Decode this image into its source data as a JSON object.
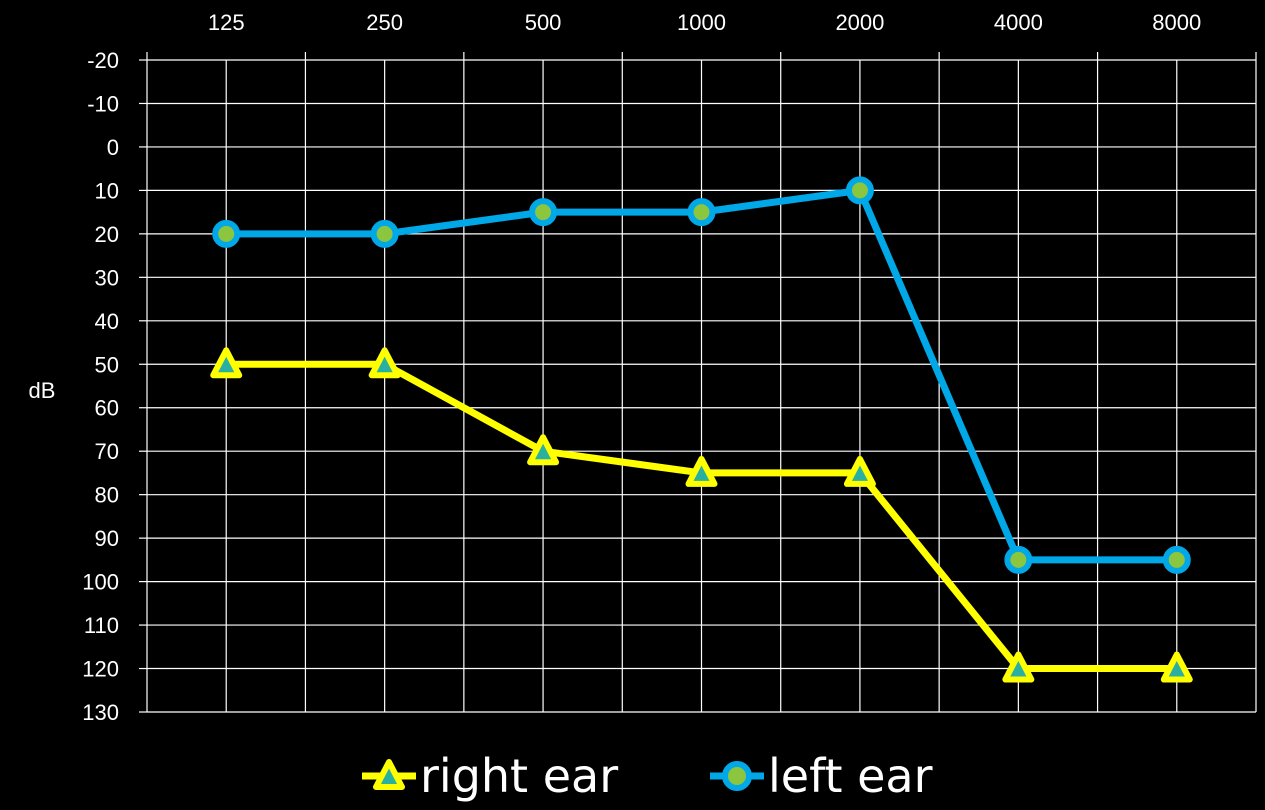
{
  "chart_data": {
    "type": "line",
    "title": "",
    "xlabel": "",
    "ylabel": "dB",
    "x": [
      "125",
      "250",
      "500",
      "1000",
      "2000",
      "4000",
      "8000"
    ],
    "x_axis_position": "top",
    "y_ticks": [
      -20,
      -10,
      0,
      10,
      20,
      30,
      40,
      50,
      60,
      70,
      80,
      90,
      100,
      110,
      120,
      130
    ],
    "ylim": [
      -20,
      130
    ],
    "y_inverted": true,
    "grid": true,
    "legend_position": "bottom",
    "background": "#000000",
    "series": [
      {
        "name": "right ear",
        "values": [
          50,
          50,
          70,
          75,
          75,
          120,
          120
        ],
        "color": "#ffff00",
        "marker": "triangle",
        "marker_fill": "#2ab0a0"
      },
      {
        "name": "left ear",
        "values": [
          20,
          20,
          15,
          15,
          10,
          95,
          95
        ],
        "color": "#00a8e8",
        "marker": "circle",
        "marker_fill": "#8cc63f"
      }
    ]
  }
}
